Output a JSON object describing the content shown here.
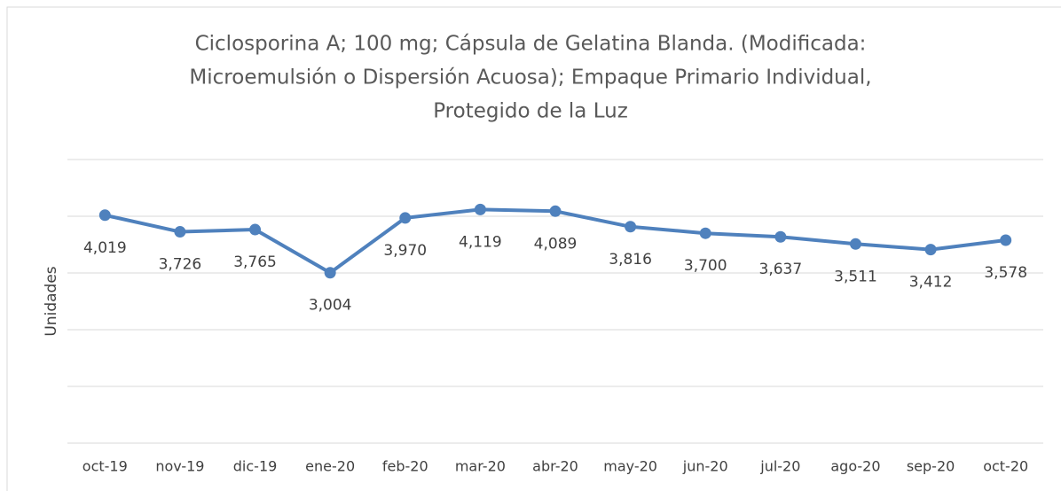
{
  "chart_data": {
    "type": "line",
    "title": [
      "Ciclosporina A; 100 mg; Cápsula  de Gelatina Blanda. (Modificada:",
      "Microemulsión o Dispersión Acuosa); Empaque Primario Individual,",
      "Protegido de la Luz"
    ],
    "y_label": "Unidades",
    "categories": [
      "oct-19",
      "nov-19",
      "dic-19",
      "ene-20",
      "feb-20",
      "mar-20",
      "abr-20",
      "may-20",
      "jun-20",
      "jul-20",
      "ago-20",
      "sep-20",
      "oct-20"
    ],
    "series": [
      {
        "name": "Unidades",
        "color": "#4f81bd",
        "values": [
          4019,
          3726,
          3765,
          3004,
          3970,
          4119,
          4089,
          3816,
          3700,
          3637,
          3511,
          3412,
          3578
        ],
        "value_labels": [
          "4,019",
          "3,726",
          "3,765",
          "3,004",
          "3,970",
          "4,119",
          "4,089",
          "3,816",
          "3,700",
          "3,637",
          "3,511",
          "3,412",
          "3,578"
        ]
      }
    ],
    "ylim": [
      0,
      5000
    ],
    "yticks": [
      0,
      1000,
      2000,
      3000,
      4000,
      5000
    ],
    "grid": true
  }
}
